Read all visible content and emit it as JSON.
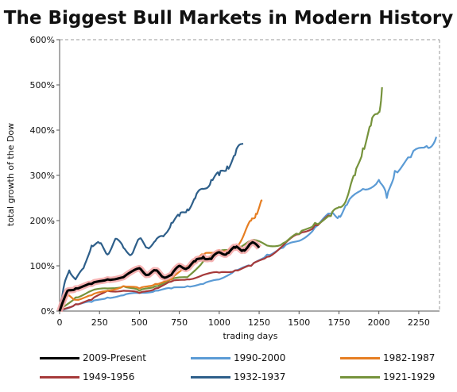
{
  "chart_data": {
    "type": "line",
    "title": "The Biggest Bull Markets in Modern History",
    "xlabel": "trading days",
    "ylabel": "total growth of the Dow",
    "xlim": [
      0,
      2380
    ],
    "ylim": [
      0,
      600
    ],
    "x_ticks": [
      0,
      250,
      500,
      750,
      1000,
      1250,
      1500,
      1750,
      2000,
      2250
    ],
    "y_ticks": [
      0,
      100,
      200,
      300,
      400,
      500,
      600
    ],
    "y_tick_labels": [
      "0%",
      "100%",
      "200%",
      "300%",
      "400%",
      "500%",
      "600%"
    ],
    "grid": false,
    "legend_position": "bottom",
    "series": [
      {
        "name": "2009-Present",
        "color": "#000000",
        "highlight": "#f4a6a6",
        "x": [
          0,
          50,
          100,
          200,
          300,
          400,
          500,
          550,
          600,
          650,
          700,
          750,
          800,
          850,
          900,
          950,
          1000,
          1050,
          1100,
          1150,
          1200,
          1250
        ],
        "y": [
          0,
          45,
          50,
          60,
          70,
          75,
          95,
          80,
          90,
          75,
          80,
          100,
          95,
          110,
          120,
          115,
          130,
          128,
          140,
          135,
          150,
          140
        ]
      },
      {
        "name": "1990-2000",
        "color": "#5b9bd5",
        "x": [
          0,
          100,
          200,
          300,
          400,
          500,
          600,
          700,
          800,
          900,
          1000,
          1100,
          1200,
          1300,
          1400,
          1500,
          1600,
          1700,
          1750,
          1800,
          1900,
          2000,
          2050,
          2100,
          2200,
          2300,
          2360
        ],
        "y": [
          0,
          15,
          20,
          30,
          35,
          40,
          45,
          50,
          55,
          60,
          70,
          90,
          100,
          125,
          140,
          155,
          185,
          215,
          210,
          235,
          270,
          290,
          250,
          310,
          340,
          365,
          385
        ]
      },
      {
        "name": "1982-1987",
        "color": "#e67e22",
        "x": [
          0,
          50,
          100,
          200,
          300,
          400,
          500,
          600,
          700,
          800,
          850,
          900,
          1000,
          1050,
          1100,
          1150,
          1200,
          1230,
          1270
        ],
        "y": [
          0,
          35,
          25,
          35,
          45,
          55,
          50,
          60,
          70,
          100,
          110,
          125,
          135,
          130,
          140,
          165,
          200,
          215,
          245
        ]
      },
      {
        "name": "1949-1956",
        "color": "#a63a3a",
        "x": [
          0,
          100,
          200,
          300,
          400,
          500,
          600,
          700,
          800,
          900,
          1000,
          1100,
          1200,
          1300,
          1400,
          1500,
          1600,
          1700
        ],
        "y": [
          0,
          15,
          25,
          45,
          45,
          40,
          50,
          65,
          70,
          80,
          85,
          90,
          100,
          120,
          145,
          170,
          190,
          210
        ]
      },
      {
        "name": "1932-1937",
        "color": "#2e5f8a",
        "x": [
          0,
          30,
          60,
          100,
          150,
          200,
          250,
          300,
          350,
          400,
          450,
          500,
          550,
          600,
          650,
          700,
          750,
          800,
          850,
          900,
          950,
          1000,
          1050,
          1100,
          1150
        ],
        "y": [
          0,
          60,
          90,
          70,
          95,
          145,
          150,
          125,
          160,
          140,
          125,
          160,
          140,
          155,
          165,
          195,
          210,
          225,
          250,
          270,
          290,
          300,
          320,
          345,
          370
        ]
      },
      {
        "name": "1921-1929",
        "color": "#76933c",
        "x": [
          0,
          100,
          200,
          300,
          400,
          500,
          600,
          700,
          800,
          900,
          1000,
          1100,
          1200,
          1300,
          1400,
          1500,
          1600,
          1700,
          1750,
          1800,
          1850,
          1900,
          1950,
          2000,
          2020
        ],
        "y": [
          0,
          30,
          45,
          50,
          55,
          45,
          55,
          70,
          75,
          110,
          130,
          140,
          155,
          145,
          150,
          170,
          195,
          210,
          230,
          250,
          300,
          360,
          410,
          440,
          495
        ]
      }
    ]
  }
}
